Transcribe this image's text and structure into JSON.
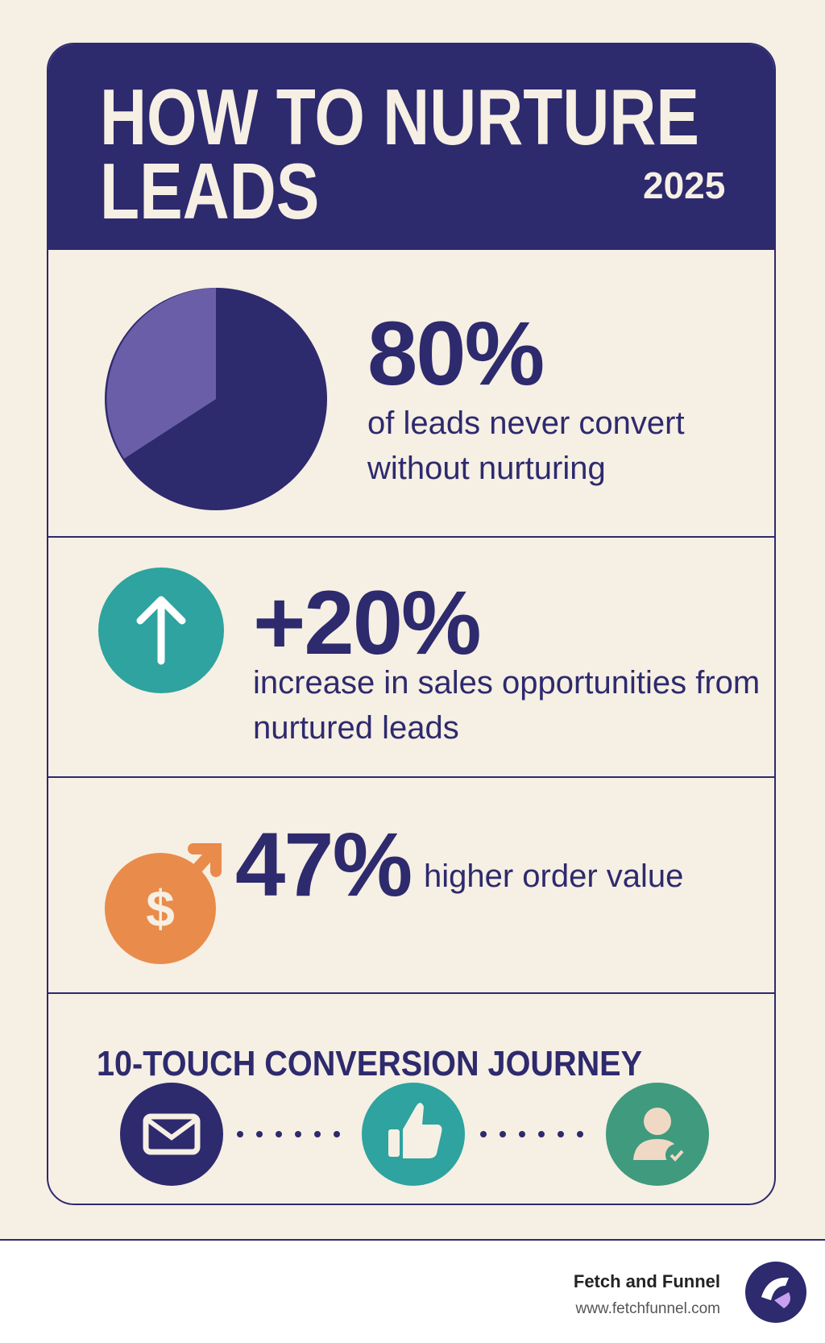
{
  "header": {
    "title_lines": [
      "HOW TO NURTURE",
      "LEADS"
    ],
    "year": "2025"
  },
  "stats": [
    {
      "value": "80%",
      "text": "of leads never convert without nurturing"
    },
    {
      "value": "+20%",
      "text": "increase in sales opportunities from nurtured leads"
    },
    {
      "value": "47%",
      "text": "higher order value"
    }
  ],
  "journey": {
    "title": "10-TOUCH CONVERSION JOURNEY"
  },
  "footer": {
    "brand": "Fetch and Funnel",
    "url": "www.fetchfunnel.com"
  }
}
